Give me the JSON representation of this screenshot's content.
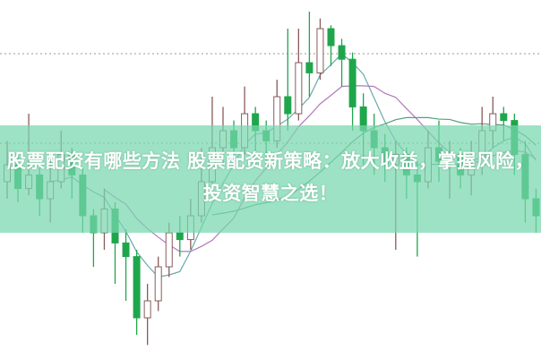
{
  "title": "股票配资有哪些方法 股票配资新策略：放大收益，掌握风险，投资智慧之选！",
  "colors": {
    "down": "#1fa64c",
    "up_outline": "#8a5a5a",
    "band": "#8fe0c0",
    "ma1": "#6aa9a9",
    "ma2": "#b07ab8",
    "ma3": "#4fa37a"
  },
  "chart_data": {
    "type": "candlestick",
    "grid": true,
    "candles_ohlc": [
      [
        50,
        62,
        45,
        55
      ],
      [
        55,
        58,
        44,
        48
      ],
      [
        48,
        70,
        46,
        52
      ],
      [
        52,
        54,
        40,
        45
      ],
      [
        45,
        56,
        38,
        50
      ],
      [
        50,
        65,
        48,
        58
      ],
      [
        58,
        60,
        45,
        52
      ],
      [
        52,
        54,
        35,
        40
      ],
      [
        40,
        42,
        25,
        35
      ],
      [
        35,
        48,
        30,
        42
      ],
      [
        42,
        44,
        20,
        32
      ],
      [
        32,
        36,
        15,
        28
      ],
      [
        28,
        30,
        5,
        10
      ],
      [
        10,
        20,
        2,
        15
      ],
      [
        15,
        28,
        12,
        25
      ],
      [
        25,
        38,
        22,
        35
      ],
      [
        35,
        40,
        28,
        33
      ],
      [
        33,
        45,
        30,
        40
      ],
      [
        40,
        60,
        38,
        50
      ],
      [
        50,
        75,
        48,
        60
      ],
      [
        60,
        72,
        55,
        65
      ],
      [
        65,
        68,
        55,
        60
      ],
      [
        60,
        78,
        58,
        70
      ],
      [
        70,
        72,
        55,
        65
      ],
      [
        65,
        68,
        55,
        62
      ],
      [
        62,
        80,
        60,
        75
      ],
      [
        75,
        95,
        65,
        70
      ],
      [
        70,
        95,
        68,
        85
      ],
      [
        85,
        100,
        75,
        82
      ],
      [
        82,
        98,
        80,
        95
      ],
      [
        95,
        96,
        84,
        90
      ],
      [
        90,
        92,
        78,
        86
      ],
      [
        86,
        88,
        65,
        72
      ],
      [
        72,
        76,
        55,
        65
      ],
      [
        65,
        70,
        52,
        60
      ],
      [
        60,
        64,
        50,
        55
      ],
      [
        55,
        62,
        30,
        58
      ],
      [
        58,
        60,
        45,
        52
      ],
      [
        52,
        56,
        28,
        50
      ],
      [
        50,
        65,
        48,
        60
      ],
      [
        60,
        68,
        50,
        56
      ],
      [
        56,
        62,
        45,
        58
      ],
      [
        58,
        60,
        48,
        52
      ],
      [
        52,
        62,
        46,
        55
      ],
      [
        55,
        72,
        52,
        65
      ],
      [
        65,
        75,
        60,
        70
      ],
      [
        70,
        72,
        62,
        68
      ],
      [
        68,
        70,
        52,
        58
      ],
      [
        58,
        62,
        38,
        45
      ],
      [
        45,
        48,
        35,
        40
      ]
    ]
  }
}
